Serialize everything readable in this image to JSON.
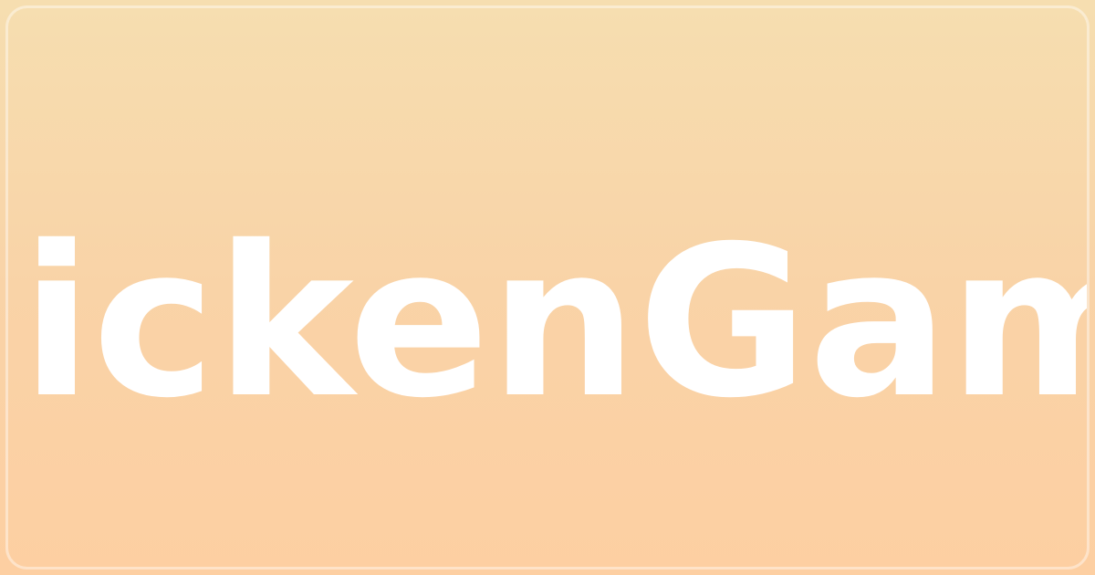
{
  "banner": {
    "title": "ickenGam"
  },
  "colors": {
    "gradient_top": "#f6deb0",
    "gradient_bottom": "#fdcfa2",
    "text": "#ffffff"
  }
}
